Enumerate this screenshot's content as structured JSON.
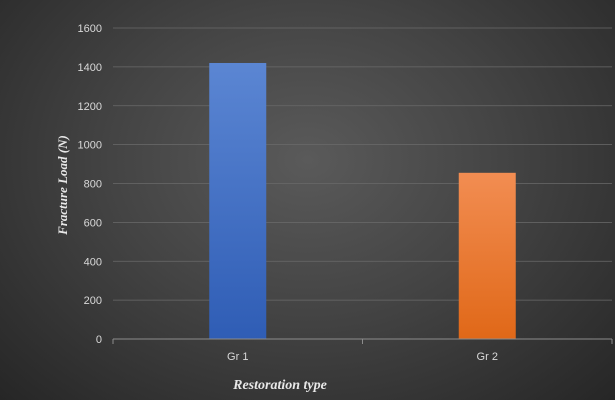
{
  "chart_data": {
    "type": "bar",
    "categories": [
      "Gr 1",
      "Gr 2"
    ],
    "values": [
      1420,
      855
    ],
    "bar_colors": [
      "#4472c4",
      "#ed7d31"
    ],
    "xlabel": "Restoration type",
    "ylabel": "Fracture  Load  (N)",
    "ylim": [
      0,
      1600
    ],
    "yticks": [
      "0",
      "200",
      "400",
      "600",
      "800",
      "1000",
      "1200",
      "1400",
      "1600"
    ],
    "grid": true,
    "legend": false,
    "background": "#3a3a3a"
  }
}
